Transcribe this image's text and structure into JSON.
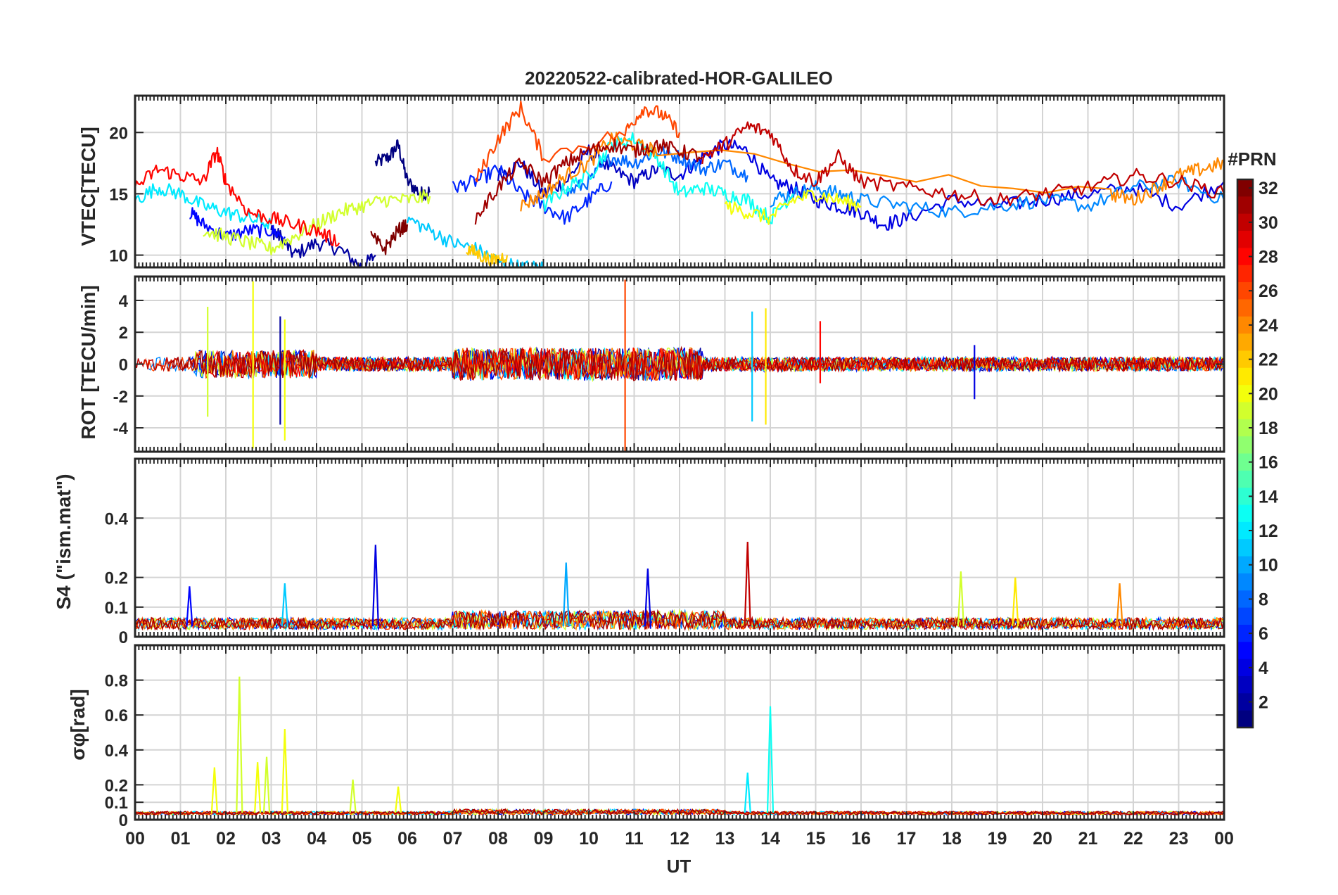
{
  "figure": {
    "title": "20220522-calibrated-HOR-GALILEO",
    "xlabel": "UT"
  },
  "chart_data": [
    {
      "type": "line",
      "panel": "vtec",
      "ylabel": "VTEC[TECU]",
      "ylim": [
        9,
        23
      ],
      "yticks": [
        10,
        15,
        20
      ],
      "xlim": [
        0,
        24
      ],
      "grid": true,
      "series": [
        {
          "prn": 1,
          "x": [
            5.3,
            5.6,
            5.8,
            6.0,
            6.3,
            6.5
          ],
          "values": [
            17.5,
            18.0,
            19.0,
            16.0,
            15.0,
            15.2
          ]
        },
        {
          "prn": 2,
          "x": [
            3.0,
            3.2,
            3.5,
            4.0,
            4.5,
            5.0,
            5.3
          ],
          "values": [
            12.0,
            11.5,
            10.0,
            11.0,
            10.5,
            9.0,
            10.0
          ]
        },
        {
          "prn": 3,
          "x": [
            8.0,
            8.5,
            9.0,
            9.5,
            10.0,
            10.5,
            11.0,
            11.5,
            12.0
          ],
          "values": [
            16.5,
            17.5,
            15.0,
            16.0,
            18.5,
            17.0,
            16.0,
            17.0,
            16.5
          ]
        },
        {
          "prn": 4,
          "x": [
            12.0,
            12.5,
            13.0,
            13.5,
            14.0,
            14.5,
            15.0,
            15.5,
            16.0,
            16.5,
            17.0,
            18.0,
            19.0,
            20.0,
            21.0,
            22.0,
            23.0,
            24.0
          ],
          "values": [
            16.5,
            18.0,
            19.0,
            18.5,
            16.0,
            15.5,
            14.5,
            14.0,
            13.5,
            12.5,
            13.0,
            14.5,
            14.0,
            14.5,
            15.0,
            15.5,
            14.0,
            16.0
          ]
        },
        {
          "prn": 5,
          "x": [
            1.2,
            1.5,
            2.0,
            2.5,
            3.0,
            3.3
          ],
          "values": [
            13.5,
            12.5,
            11.5,
            12.0,
            12.0,
            11.5
          ]
        },
        {
          "prn": 6,
          "x": [
            7.0,
            7.5,
            8.0,
            8.5,
            9.0,
            9.5,
            10.0,
            10.5
          ],
          "values": [
            15.5,
            16.0,
            17.0,
            15.0,
            14.0,
            13.0,
            14.5,
            16.0
          ]
        },
        {
          "prn": 8,
          "x": [
            9.5,
            10.0,
            10.5,
            11.0,
            11.5,
            12.0,
            12.5,
            13.0,
            13.5
          ],
          "values": [
            15.0,
            16.0,
            18.0,
            17.5,
            18.5,
            18.0,
            17.0,
            17.5,
            16.5
          ]
        },
        {
          "prn": 9,
          "x": [
            14.0,
            14.5,
            15.0,
            15.5,
            16.0,
            17.0,
            18.0,
            19.0,
            20.0,
            21.0,
            22.0,
            23.0,
            24.0
          ],
          "values": [
            14.5,
            15.0,
            15.5,
            15.0,
            14.5,
            14.0,
            13.5,
            14.0,
            14.5,
            14.0,
            15.5,
            16.0,
            14.5
          ]
        },
        {
          "prn": 11,
          "x": [
            6.0,
            6.5,
            7.0,
            7.5,
            8.0,
            8.5,
            9.0
          ],
          "values": [
            13.0,
            12.0,
            11.0,
            10.5,
            9.5,
            9.0,
            9.0
          ]
        },
        {
          "prn": 12,
          "x": [
            0.0,
            0.5,
            1.0,
            1.5,
            2.0,
            2.5,
            3.0
          ],
          "values": [
            14.5,
            15.5,
            15.0,
            14.0,
            13.5,
            13.0,
            12.5
          ]
        },
        {
          "prn": 13,
          "x": [
            9.0,
            9.5,
            10.0,
            10.5,
            11.0,
            11.5,
            12.0,
            12.5,
            13.0,
            13.5,
            14.0,
            14.5
          ],
          "values": [
            14.0,
            15.5,
            16.5,
            19.0,
            19.5,
            18.0,
            15.0,
            15.5,
            15.0,
            14.5,
            13.0,
            15.0
          ]
        },
        {
          "prn": 19,
          "x": [
            1.5,
            2.0,
            2.5,
            3.0,
            3.5,
            4.0,
            4.5,
            5.0,
            5.5,
            6.0,
            6.5
          ],
          "values": [
            12.0,
            11.5,
            11.0,
            10.5,
            11.5,
            12.5,
            13.5,
            14.0,
            14.5,
            14.5,
            14.8
          ]
        },
        {
          "prn": 20,
          "x": [
            13.0,
            13.5,
            14.0,
            14.5,
            15.0,
            15.5,
            16.0
          ],
          "values": [
            14.0,
            13.5,
            13.0,
            14.5,
            15.0,
            14.5,
            14.0
          ]
        },
        {
          "prn": 22,
          "x": [
            7.3,
            7.6,
            7.9,
            8.2
          ],
          "values": [
            10.5,
            10.0,
            9.5,
            10.0
          ]
        },
        {
          "prn": 24,
          "x": [
            8.5,
            9.0,
            9.5,
            10.0,
            10.5,
            11.0,
            11.5,
            21.5,
            22.0,
            22.5,
            23.0,
            23.5,
            24.0
          ],
          "values": [
            14.0,
            15.0,
            16.5,
            17.5,
            19.5,
            19.0,
            18.5,
            15.0,
            14.5,
            15.5,
            16.5,
            17.0,
            17.5
          ]
        },
        {
          "prn": 26,
          "x": [
            7.5,
            8.0,
            8.5,
            9.0,
            10.8,
            11.2,
            11.6,
            12.0
          ],
          "values": [
            16.0,
            19.5,
            22.0,
            18.0,
            20.0,
            22.0,
            21.5,
            20.0
          ]
        },
        {
          "prn": 28,
          "x": [
            0.0,
            0.5,
            1.0,
            1.5,
            1.8,
            2.0,
            2.5,
            3.0,
            3.5,
            4.0,
            4.5
          ],
          "values": [
            15.5,
            17.0,
            16.5,
            16.0,
            18.5,
            16.0,
            13.5,
            13.0,
            12.5,
            12.0,
            11.0
          ]
        },
        {
          "prn": 30,
          "x": [
            12.5,
            13.0,
            13.5,
            14.0,
            14.5,
            15.0,
            15.5,
            16.0,
            17.0,
            18.0,
            19.0,
            20.0,
            21.0,
            22.0,
            23.0,
            24.0
          ],
          "values": [
            18.0,
            19.0,
            20.5,
            20.0,
            17.0,
            16.0,
            18.0,
            16.0,
            15.5,
            15.0,
            14.5,
            15.0,
            15.5,
            16.5,
            16.0,
            15.0
          ]
        },
        {
          "prn": 31,
          "x": [
            7.5,
            8.0,
            8.5,
            9.0,
            9.5,
            10.0,
            10.5,
            11.0,
            11.5,
            12.0,
            12.5
          ],
          "values": [
            13.0,
            15.5,
            17.5,
            16.0,
            17.5,
            18.5,
            19.0,
            18.5,
            19.0,
            18.5,
            18.0
          ]
        },
        {
          "prn": 32,
          "x": [
            5.2,
            5.5,
            5.8,
            6.0
          ],
          "values": [
            11.5,
            10.5,
            12.0,
            12.5
          ]
        }
      ]
    },
    {
      "type": "line",
      "panel": "rot",
      "ylabel": "ROT [TECU/min]",
      "ylim": [
        -5.5,
        5.5
      ],
      "yticks": [
        -4,
        -2,
        0,
        2,
        4
      ],
      "xlim": [
        0,
        24
      ],
      "grid": true,
      "spikes": [
        {
          "prn": 19,
          "x": 1.6,
          "values": [
            -3.3,
            3.6
          ]
        },
        {
          "prn": 20,
          "x": 2.6,
          "values": [
            -5.3,
            5.2
          ]
        },
        {
          "prn": 20,
          "x": 3.3,
          "values": [
            -4.8,
            2.8
          ]
        },
        {
          "prn": 2,
          "x": 3.2,
          "values": [
            -3.8,
            3.0
          ]
        },
        {
          "prn": 26,
          "x": 10.8,
          "values": [
            -5.5,
            5.3
          ]
        },
        {
          "prn": 21,
          "x": 13.9,
          "values": [
            -3.8,
            3.5
          ]
        },
        {
          "prn": 11,
          "x": 13.6,
          "values": [
            -3.6,
            3.3
          ]
        },
        {
          "prn": 28,
          "x": 15.1,
          "values": [
            -1.2,
            2.7
          ]
        },
        {
          "prn": 4,
          "x": 18.5,
          "values": [
            -2.2,
            1.2
          ]
        }
      ]
    },
    {
      "type": "line",
      "panel": "s4",
      "ylabel": "S4 (\"ism.mat\")",
      "ylim": [
        0,
        0.6
      ],
      "yticks": [
        0,
        0.1,
        0.2,
        0.4
      ],
      "xlim": [
        0,
        24
      ],
      "grid": true,
      "peaks": [
        {
          "prn": 5,
          "x": 1.2,
          "value": 0.17
        },
        {
          "prn": 11,
          "x": 3.3,
          "value": 0.18
        },
        {
          "prn": 4,
          "x": 5.3,
          "value": 0.31
        },
        {
          "prn": 10,
          "x": 9.5,
          "value": 0.25
        },
        {
          "prn": 4,
          "x": 11.3,
          "value": 0.23
        },
        {
          "prn": 30,
          "x": 13.5,
          "value": 0.32
        },
        {
          "prn": 19,
          "x": 18.2,
          "value": 0.22
        },
        {
          "prn": 21,
          "x": 19.4,
          "value": 0.2
        },
        {
          "prn": 24,
          "x": 21.7,
          "value": 0.18
        }
      ]
    },
    {
      "type": "line",
      "panel": "sigma_phi",
      "ylabel": "σφ[rad]",
      "ylim": [
        0,
        1.0
      ],
      "yticks": [
        0,
        0.1,
        0.2,
        0.4,
        0.6,
        0.8
      ],
      "xlim": [
        0,
        24
      ],
      "grid": true,
      "peaks": [
        {
          "prn": 20,
          "x": 1.75,
          "value": 0.3
        },
        {
          "prn": 19,
          "x": 2.3,
          "value": 0.82
        },
        {
          "prn": 20,
          "x": 2.7,
          "value": 0.33
        },
        {
          "prn": 19,
          "x": 2.9,
          "value": 0.36
        },
        {
          "prn": 20,
          "x": 3.3,
          "value": 0.52
        },
        {
          "prn": 19,
          "x": 4.8,
          "value": 0.23
        },
        {
          "prn": 20,
          "x": 5.8,
          "value": 0.19
        },
        {
          "prn": 12,
          "x": 13.5,
          "value": 0.27
        },
        {
          "prn": 13,
          "x": 14.0,
          "value": 0.65
        }
      ]
    }
  ],
  "xaxis": {
    "ticks": [
      "00",
      "01",
      "02",
      "03",
      "04",
      "05",
      "06",
      "07",
      "08",
      "09",
      "10",
      "11",
      "12",
      "13",
      "14",
      "15",
      "16",
      "17",
      "18",
      "19",
      "20",
      "21",
      "22",
      "23",
      "00"
    ]
  },
  "colorbar": {
    "label": "#PRN",
    "range": [
      1,
      32
    ],
    "ticks": [
      "2",
      "4",
      "6",
      "8",
      "10",
      "12",
      "14",
      "16",
      "18",
      "20",
      "22",
      "24",
      "26",
      "28",
      "30",
      "32"
    ],
    "colormap": "jet"
  }
}
